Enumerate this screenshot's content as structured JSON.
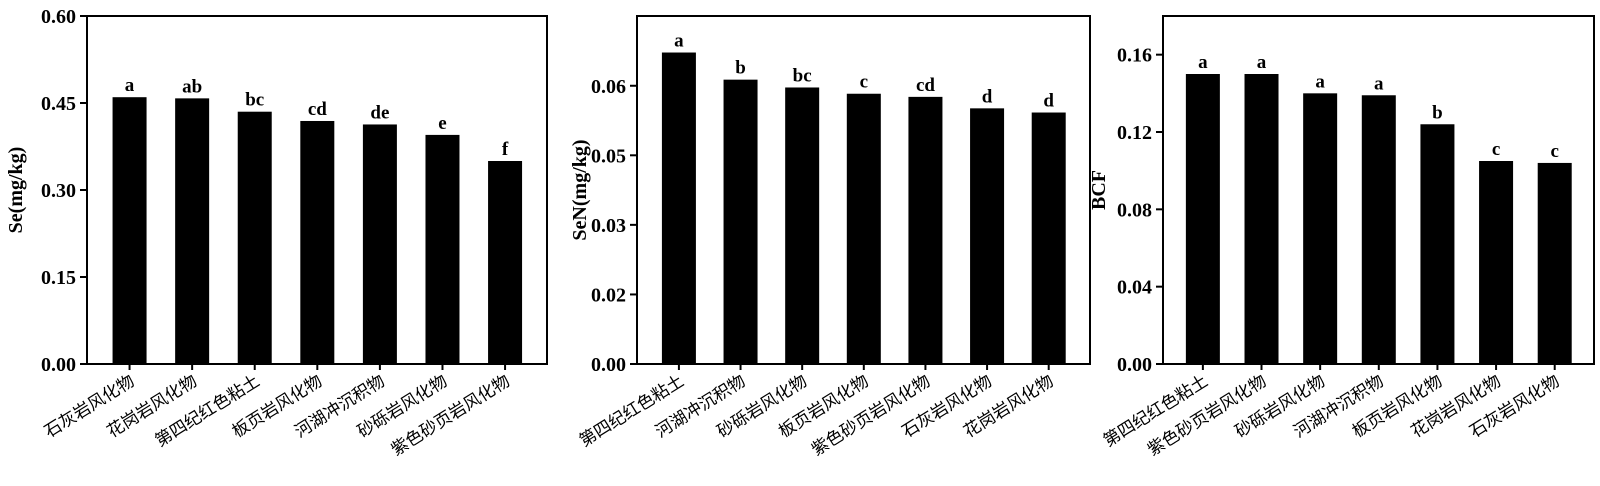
{
  "chart_data": [
    {
      "type": "bar",
      "ylabel": "Se(mg/kg)",
      "ylim": [
        0,
        0.6
      ],
      "yticks": [
        "0.00",
        "0.15",
        "0.30",
        "0.45",
        "0.60"
      ],
      "ytick_values": [
        0,
        0.15,
        0.3,
        0.45,
        0.6
      ],
      "categories": [
        "石灰岩风化物",
        "花岗岩风化物",
        "第四纪红色粘土",
        "板页岩风化物",
        "河湖冲沉积物",
        "砂砾岩风化物",
        "紫色砂页岩风化物"
      ],
      "values": [
        0.46,
        0.458,
        0.435,
        0.419,
        0.413,
        0.395,
        0.35
      ],
      "letters": [
        "a",
        "ab",
        "bc",
        "cd",
        "de",
        "e",
        "f"
      ],
      "color": "#000000"
    },
    {
      "type": "bar",
      "ylabel": "SeN(mg/kg)",
      "ylim": [
        0,
        0.0667
      ],
      "yticks": [
        "0.00",
        "0.02",
        "0.03",
        "0.05",
        "0.06"
      ],
      "ytick_values": [
        0,
        0.01333,
        0.02667,
        0.04,
        0.05333
      ],
      "categories": [
        "第四纪红色粘土",
        "河湖冲沉积物",
        "砂砾岩风化物",
        "板页岩风化物",
        "紫色砂页岩风化物",
        "石灰岩风化物",
        "花岗岩风化物"
      ],
      "values": [
        0.0597,
        0.0545,
        0.053,
        0.0518,
        0.0512,
        0.049,
        0.0482
      ],
      "letters": [
        "a",
        "b",
        "bc",
        "c",
        "cd",
        "d",
        "d"
      ],
      "color": "#000000"
    },
    {
      "type": "bar",
      "ylabel": "BCF",
      "ylim": [
        0,
        0.18
      ],
      "yticks": [
        "0.00",
        "0.04",
        "0.08",
        "0.12",
        "0.16"
      ],
      "ytick_values": [
        0,
        0.04,
        0.08,
        0.12,
        0.16
      ],
      "categories": [
        "第四纪红色粘土",
        "紫色砂页岩风化物",
        "砂砾岩风化物",
        "河湖冲沉积物",
        "板页岩风化物",
        "花岗岩风化物",
        "石灰岩风化物"
      ],
      "values": [
        0.15,
        0.15,
        0.14,
        0.139,
        0.124,
        0.105,
        0.104
      ],
      "letters": [
        "a",
        "a",
        "a",
        "a",
        "b",
        "c",
        "c"
      ],
      "color": "#000000"
    }
  ]
}
